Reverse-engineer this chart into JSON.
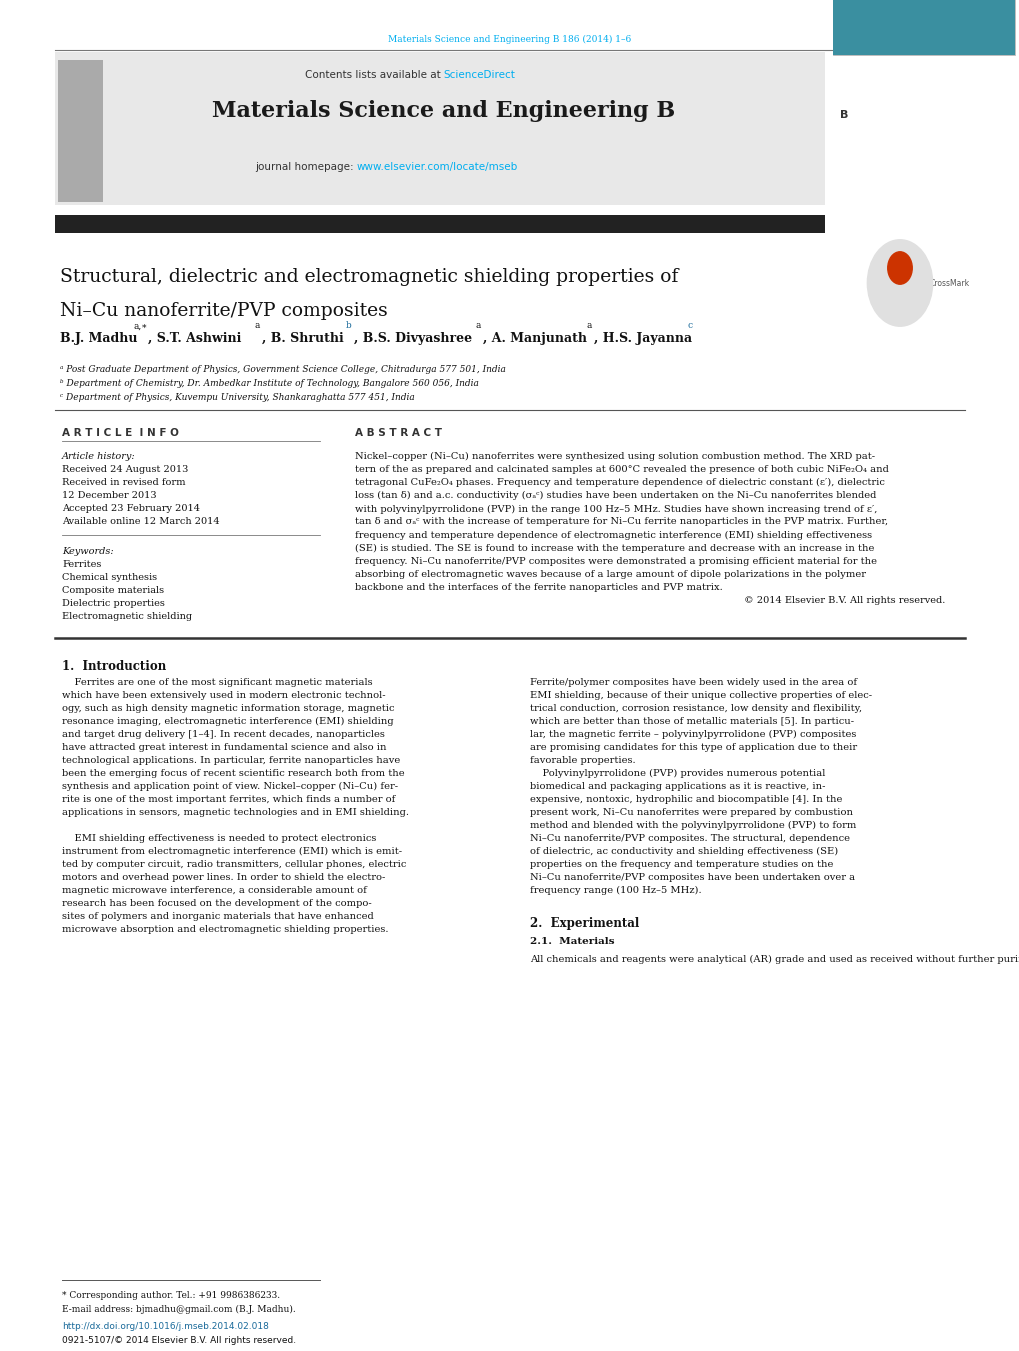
{
  "page_width": 10.2,
  "page_height": 13.51,
  "bg_color": "#ffffff",
  "journal_ref": "Materials Science and Engineering B 186 (2014) 1–6",
  "journal_ref_color": "#00aeef",
  "contents_text": "Contents lists available at ",
  "sciencedirect_text": "ScienceDirect",
  "sciencedirect_color": "#00aeef",
  "journal_title": "Materials Science and Engineering B",
  "journal_homepage": "journal homepage: ",
  "journal_url": "www.elsevier.com/locate/mseb",
  "journal_url_color": "#00aeef",
  "elsevier_color": "#f47920",
  "header_bg": "#e8e8e8",
  "divider_color": "#333333",
  "paper_title_line1": "Structural, dielectric and electromagnetic shielding properties of",
  "paper_title_line2": "Ni–Cu nanoferrite/PVP composites",
  "affil_a": "ᵃ Post Graduate Department of Physics, Government Science College, Chitradurga 577 501, India",
  "affil_b": "ᵇ Department of Chemistry, Dr. Ambedkar Institute of Technology, Bangalore 560 056, India",
  "affil_c": "ᶜ Department of Physics, Kuvempu University, Shankaraghatta 577 451, India",
  "article_info_title": "A R T I C L E  I N F O",
  "abstract_title": "A B S T R A C T",
  "article_history_label": "Article history:",
  "received1": "Received 24 August 2013",
  "revised": "Received in revised form",
  "revised2": "12 December 2013",
  "accepted": "Accepted 23 February 2014",
  "available": "Available online 12 March 2014",
  "keywords_label": "Keywords:",
  "keyword1": "Ferrites",
  "keyword2": "Chemical synthesis",
  "keyword3": "Composite materials",
  "keyword4": "Dielectric properties",
  "keyword5": "Electromagnetic shielding",
  "copyright": "© 2014 Elsevier B.V. All rights reserved.",
  "intro_title": "1.  Introduction",
  "section2_title": "2.  Experimental",
  "section21_title": "2.1.  Materials",
  "section21_text": "All chemicals and reagents were analytical (AR) grade and used as received without further purification. Nickel nitrate, copper",
  "footer_note": "* Corresponding author. Tel.: +91 9986386233.",
  "footer_email": "E-mail address: bjmadhu@gmail.com (B.J. Madhu).",
  "footer_doi": "http://dx.doi.org/10.1016/j.mseb.2014.02.018",
  "footer_issn": "0921-5107/© 2014 Elsevier B.V. All rights reserved.",
  "abstract_lines": [
    "Nickel–copper (Ni–Cu) nanoferrites were synthesized using solution combustion method. The XRD pat-",
    "tern of the as prepared and calcinated samples at 600°C revealed the presence of both cubic NiFe₂O₄ and",
    "tetragonal CuFe₂O₄ phases. Frequency and temperature dependence of dielectric constant (ε′), dielectric",
    "loss (tan δ) and a.c. conductivity (σₐᶜ) studies have been undertaken on the Ni–Cu nanoferrites blended",
    "with polyvinylpyrrolidone (PVP) in the range 100 Hz–5 MHz. Studies have shown increasing trend of ε′,",
    "tan δ and σₐᶜ with the increase of temperature for Ni–Cu ferrite nanoparticles in the PVP matrix. Further,",
    "frequency and temperature dependence of electromagnetic interference (EMI) shielding effectiveness",
    "(SE) is studied. The SE is found to increase with the temperature and decrease with an increase in the",
    "frequency. Ni–Cu nanoferrite/PVP composites were demonstrated a promising efficient material for the",
    "absorbing of electromagnetic waves because of a large amount of dipole polarizations in the polymer",
    "backbone and the interfaces of the ferrite nanoparticles and PVP matrix."
  ],
  "intro_col1_lines": [
    "    Ferrites are one of the most significant magnetic materials",
    "which have been extensively used in modern electronic technol-",
    "ogy, such as high density magnetic information storage, magnetic",
    "resonance imaging, electromagnetic interference (EMI) shielding",
    "and target drug delivery [1–4]. In recent decades, nanoparticles",
    "have attracted great interest in fundamental science and also in",
    "technological applications. In particular, ferrite nanoparticles have",
    "been the emerging focus of recent scientific research both from the",
    "synthesis and application point of view. Nickel–copper (Ni–Cu) fer-",
    "rite is one of the most important ferrites, which finds a number of",
    "applications in sensors, magnetic technologies and in EMI shielding.",
    "",
    "    EMI shielding effectiveness is needed to protect electronics",
    "instrument from electromagnetic interference (EMI) which is emit-",
    "ted by computer circuit, radio transmitters, cellular phones, electric",
    "motors and overhead power lines. In order to shield the electro-",
    "magnetic microwave interference, a considerable amount of",
    "research has been focused on the development of the compo-",
    "sites of polymers and inorganic materials that have enhanced",
    "microwave absorption and electromagnetic shielding properties."
  ],
  "intro_col2_lines": [
    "Ferrite/polymer composites have been widely used in the area of",
    "EMI shielding, because of their unique collective properties of elec-",
    "trical conduction, corrosion resistance, low density and flexibility,",
    "which are better than those of metallic materials [5]. In particu-",
    "lar, the magnetic ferrite – polyvinylpyrrolidone (PVP) composites",
    "are promising candidates for this type of application due to their",
    "favorable properties.",
    "    Polyvinylpyrrolidone (PVP) provides numerous potential",
    "biomedical and packaging applications as it is reactive, in-",
    "expensive, nontoxic, hydrophilic and biocompatible [4]. In the",
    "present work, Ni–Cu nanoferrites were prepared by combustion",
    "method and blended with the polyvinylpyrrolidone (PVP) to form",
    "Ni–Cu nanoferrite/PVP composites. The structural, dependence",
    "of dielectric, ac conductivity and shielding effectiveness (SE)",
    "properties on the frequency and temperature studies on the",
    "Ni–Cu nanoferrite/PVP composites have been undertaken over a",
    "frequency range (100 Hz–5 MHz)."
  ]
}
